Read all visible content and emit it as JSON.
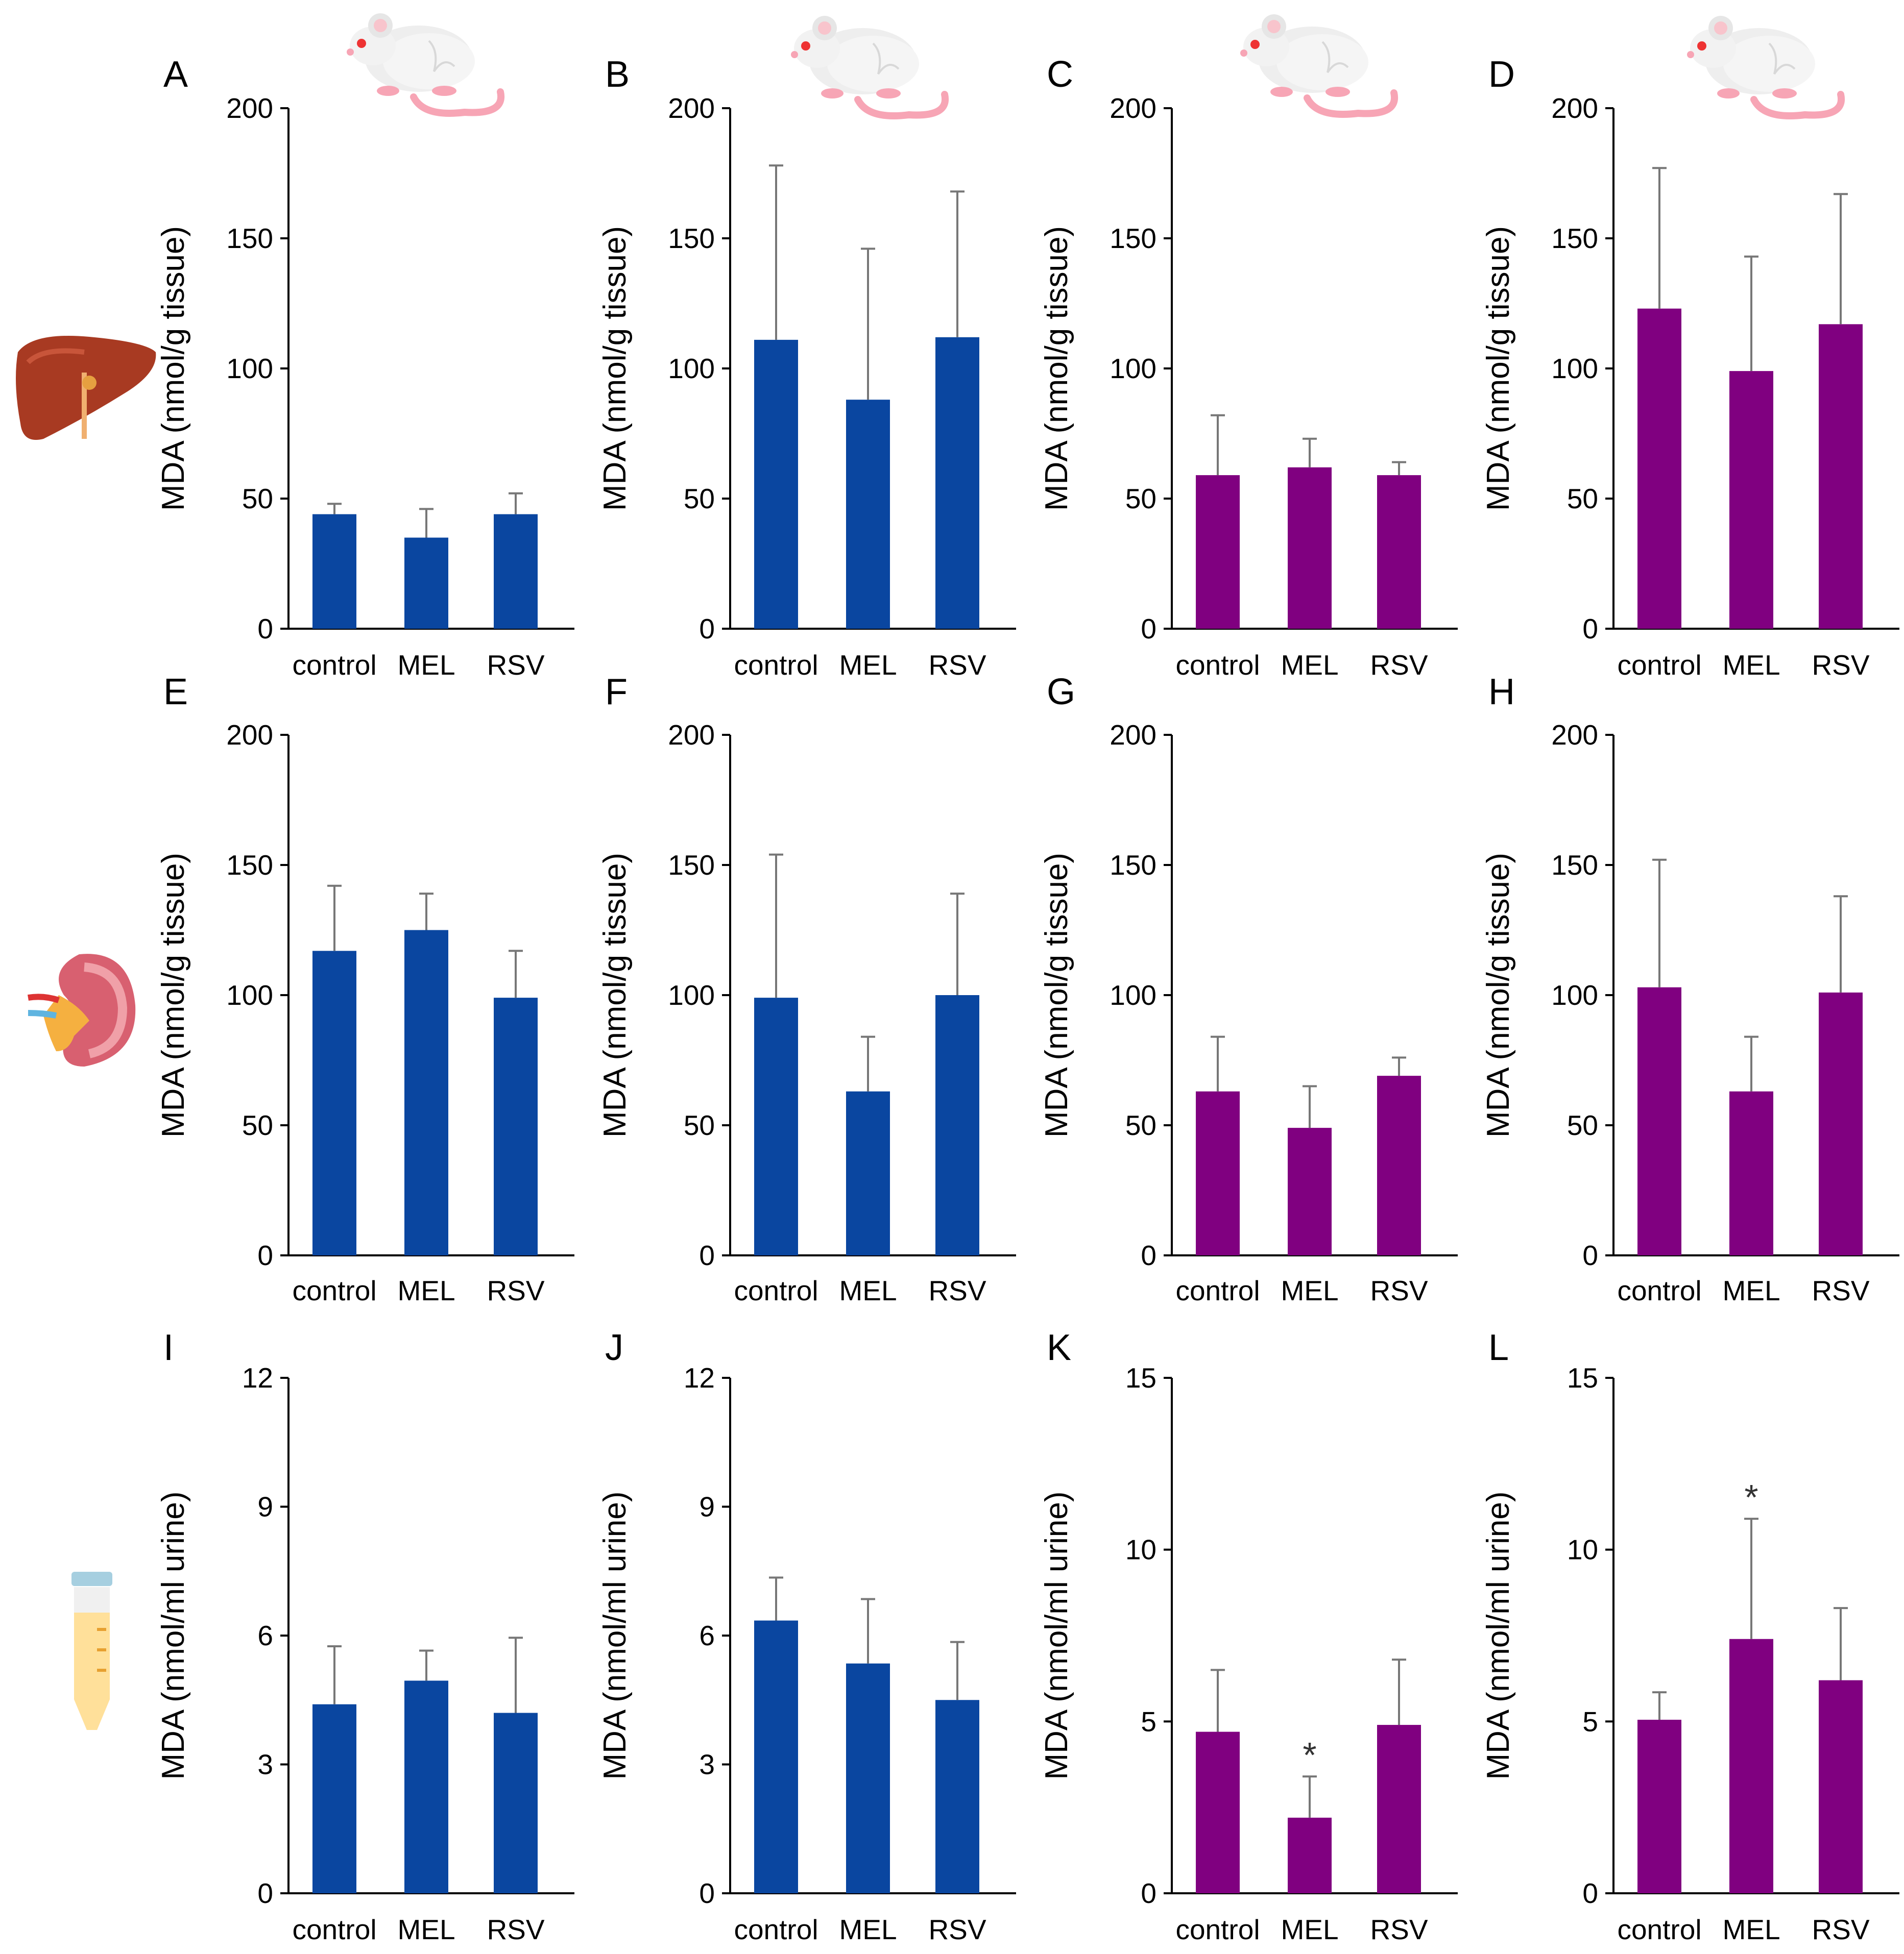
{
  "colors": {
    "blue": "#0a46a0",
    "purple": "#800080"
  },
  "chart_data": [
    {
      "id": "A",
      "type": "bar",
      "title": "",
      "xlabel": "",
      "ylabel": "MDA (nmol/g tissue)",
      "categories": [
        "control",
        "MEL",
        "RSV"
      ],
      "values": [
        44,
        35,
        44
      ],
      "errors": [
        4,
        11,
        8
      ],
      "ylim": [
        0,
        200
      ],
      "yticks": [
        0,
        50,
        100,
        150,
        200
      ],
      "color": "blue",
      "annotations": [
        "",
        "",
        ""
      ],
      "grid": false
    },
    {
      "id": "B",
      "type": "bar",
      "title": "",
      "xlabel": "",
      "ylabel": "MDA (nmol/g tissue)",
      "categories": [
        "control",
        "MEL",
        "RSV"
      ],
      "values": [
        111,
        88,
        112
      ],
      "errors": [
        67,
        58,
        56
      ],
      "ylim": [
        0,
        200
      ],
      "yticks": [
        0,
        50,
        100,
        150,
        200
      ],
      "color": "blue",
      "annotations": [
        "",
        "",
        ""
      ],
      "grid": false
    },
    {
      "id": "C",
      "type": "bar",
      "title": "",
      "xlabel": "",
      "ylabel": "MDA (nmol/g tissue)",
      "categories": [
        "control",
        "MEL",
        "RSV"
      ],
      "values": [
        59,
        62,
        59
      ],
      "errors": [
        23,
        11,
        5
      ],
      "ylim": [
        0,
        200
      ],
      "yticks": [
        0,
        50,
        100,
        150,
        200
      ],
      "color": "purple",
      "annotations": [
        "",
        "",
        ""
      ],
      "grid": false
    },
    {
      "id": "D",
      "type": "bar",
      "title": "",
      "xlabel": "",
      "ylabel": "MDA (nmol/g tissue)",
      "categories": [
        "control",
        "MEL",
        "RSV"
      ],
      "values": [
        123,
        99,
        117
      ],
      "errors": [
        54,
        44,
        50
      ],
      "ylim": [
        0,
        200
      ],
      "yticks": [
        0,
        50,
        100,
        150,
        200
      ],
      "color": "purple",
      "annotations": [
        "",
        "",
        ""
      ],
      "grid": false
    },
    {
      "id": "E",
      "type": "bar",
      "title": "",
      "xlabel": "",
      "ylabel": "MDA (nmol/g tissue)",
      "categories": [
        "control",
        "MEL",
        "RSV"
      ],
      "values": [
        117,
        125,
        99
      ],
      "errors": [
        25,
        14,
        18
      ],
      "ylim": [
        0,
        200
      ],
      "yticks": [
        0,
        50,
        100,
        150,
        200
      ],
      "color": "blue",
      "annotations": [
        "",
        "",
        ""
      ],
      "grid": false
    },
    {
      "id": "F",
      "type": "bar",
      "title": "",
      "xlabel": "",
      "ylabel": "MDA (nmol/g tissue)",
      "categories": [
        "control",
        "MEL",
        "RSV"
      ],
      "values": [
        99,
        63,
        100
      ],
      "errors": [
        55,
        21,
        39
      ],
      "ylim": [
        0,
        200
      ],
      "yticks": [
        0,
        50,
        100,
        150,
        200
      ],
      "color": "blue",
      "annotations": [
        "",
        "",
        ""
      ],
      "grid": false
    },
    {
      "id": "G",
      "type": "bar",
      "title": "",
      "xlabel": "",
      "ylabel": "MDA (nmol/g tissue)",
      "categories": [
        "control",
        "MEL",
        "RSV"
      ],
      "values": [
        63,
        49,
        69
      ],
      "errors": [
        21,
        16,
        7
      ],
      "ylim": [
        0,
        200
      ],
      "yticks": [
        0,
        50,
        100,
        150,
        200
      ],
      "color": "purple",
      "annotations": [
        "",
        "",
        ""
      ],
      "grid": false
    },
    {
      "id": "H",
      "type": "bar",
      "title": "",
      "xlabel": "",
      "ylabel": "MDA (nmol/g tissue)",
      "categories": [
        "control",
        "MEL",
        "RSV"
      ],
      "values": [
        103,
        63,
        101
      ],
      "errors": [
        49,
        21,
        37
      ],
      "ylim": [
        0,
        200
      ],
      "yticks": [
        0,
        50,
        100,
        150,
        200
      ],
      "color": "purple",
      "annotations": [
        "",
        "",
        ""
      ],
      "grid": false
    },
    {
      "id": "I",
      "type": "bar",
      "title": "",
      "xlabel": "",
      "ylabel": "MDA (nmol/ml urine)",
      "categories": [
        "control",
        "MEL",
        "RSV"
      ],
      "values": [
        4.4,
        4.95,
        4.2
      ],
      "errors": [
        1.35,
        0.7,
        1.75
      ],
      "ylim": [
        0,
        12
      ],
      "yticks": [
        0,
        3,
        6,
        9,
        12
      ],
      "color": "blue",
      "annotations": [
        "",
        "",
        ""
      ],
      "grid": false
    },
    {
      "id": "J",
      "type": "bar",
      "title": "",
      "xlabel": "",
      "ylabel": "MDA (nmol/ml urine)",
      "categories": [
        "control",
        "MEL",
        "RSV"
      ],
      "values": [
        6.35,
        5.35,
        4.5
      ],
      "errors": [
        1.0,
        1.5,
        1.35
      ],
      "ylim": [
        0,
        12
      ],
      "yticks": [
        0,
        3,
        6,
        9,
        12
      ],
      "color": "blue",
      "annotations": [
        "",
        "",
        ""
      ],
      "grid": false
    },
    {
      "id": "K",
      "type": "bar",
      "title": "",
      "xlabel": "",
      "ylabel": "MDA (nmol/ml urine)",
      "categories": [
        "control",
        "MEL",
        "RSV"
      ],
      "values": [
        4.7,
        2.2,
        4.9
      ],
      "errors": [
        1.8,
        1.2,
        1.9
      ],
      "ylim": [
        0,
        15
      ],
      "yticks": [
        0,
        5,
        10,
        15
      ],
      "color": "purple",
      "annotations": [
        "",
        "*",
        ""
      ],
      "grid": false
    },
    {
      "id": "L",
      "type": "bar",
      "title": "",
      "xlabel": "",
      "ylabel": "MDA (nmol/ml urine)",
      "categories": [
        "control",
        "MEL",
        "RSV"
      ],
      "values": [
        5.05,
        7.4,
        6.2
      ],
      "errors": [
        0.8,
        3.5,
        2.1
      ],
      "ylim": [
        0,
        15
      ],
      "yticks": [
        0,
        5,
        10,
        15
      ],
      "color": "purple",
      "annotations": [
        "",
        "*",
        ""
      ],
      "grid": false
    }
  ],
  "icons": {
    "mouse": "mouse-icon",
    "liver": "liver-icon",
    "kidney": "kidney-icon",
    "urine": "urine-tube-icon"
  }
}
